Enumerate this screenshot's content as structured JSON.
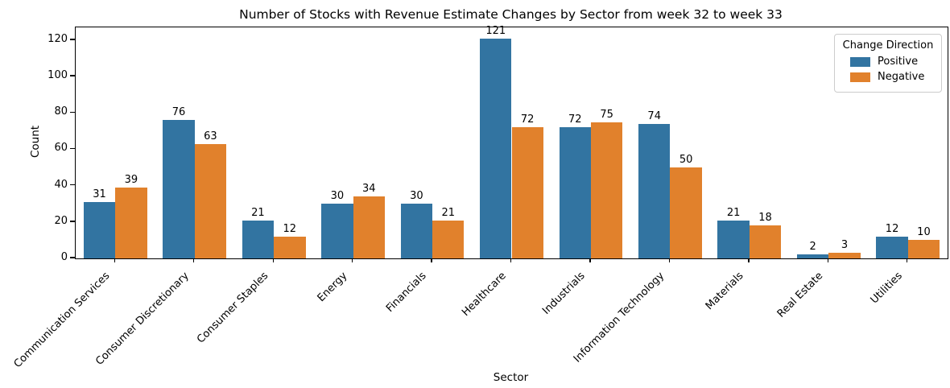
{
  "figure": {
    "background": "#ffffff",
    "text_color": "#000000",
    "spine_color": "#000000"
  },
  "chart_data": {
    "type": "bar",
    "title": "Number of Stocks with Revenue Estimate Changes by Sector from week 32 to week 33",
    "xlabel": "Sector",
    "ylabel": "Count",
    "categories": [
      "Communication Services",
      "Consumer Discretionary",
      "Consumer Staples",
      "Energy",
      "Financials",
      "Healthcare",
      "Industrials",
      "Information Technology",
      "Materials",
      "Real Estate",
      "Utilities"
    ],
    "series": [
      {
        "name": "Positive",
        "color": "#3274a1",
        "values": [
          31,
          76,
          21,
          30,
          30,
          121,
          72,
          74,
          21,
          2,
          12
        ]
      },
      {
        "name": "Negative",
        "color": "#e1812c",
        "values": [
          39,
          63,
          12,
          34,
          21,
          72,
          75,
          50,
          18,
          3,
          10
        ]
      }
    ],
    "yticks": [
      0,
      20,
      40,
      60,
      80,
      100,
      120
    ],
    "ylim": [
      0,
      127
    ],
    "grid": false,
    "bar_value_labels": true,
    "xtick_rotation": 45,
    "legend": {
      "title": "Change Direction",
      "position": "upper right",
      "entries": [
        "Positive",
        "Negative"
      ]
    }
  }
}
